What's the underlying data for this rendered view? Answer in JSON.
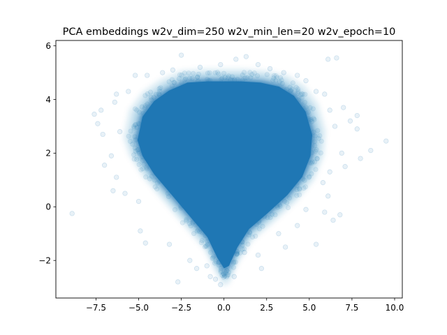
{
  "chart_data": {
    "type": "scatter",
    "title": "PCA embeddings w2v_dim=250 w2v_min_len=20 w2v_epoch=10",
    "xlabel": "",
    "ylabel": "",
    "xlim": [
      -9.85,
      10.45
    ],
    "ylim": [
      -3.4,
      6.2
    ],
    "x_ticks": [
      -7.5,
      -5.0,
      -2.5,
      0.0,
      2.5,
      5.0,
      7.5,
      10.0
    ],
    "x_tick_labels": [
      "−7.5",
      "−5.0",
      "−2.5",
      "0.0",
      "2.5",
      "5.0",
      "7.5",
      "10.0"
    ],
    "y_ticks": [
      -2,
      0,
      2,
      4,
      6
    ],
    "y_tick_labels": [
      "−2",
      "0",
      "2",
      "4",
      "6"
    ],
    "grid": false,
    "legend": "none",
    "marker_color": "#1f77b4",
    "marker_alpha": 0.08,
    "series": [
      {
        "density_region_outline": [
          [
            -5.2,
            2.5
          ],
          [
            -4.9,
            3.4
          ],
          [
            -4.2,
            4.0
          ],
          [
            -3.3,
            4.4
          ],
          [
            -2.2,
            4.7
          ],
          [
            -1.0,
            4.75
          ],
          [
            0.0,
            4.75
          ],
          [
            1.0,
            4.75
          ],
          [
            2.2,
            4.7
          ],
          [
            3.3,
            4.55
          ],
          [
            4.2,
            4.2
          ],
          [
            4.9,
            3.6
          ],
          [
            5.3,
            2.7
          ],
          [
            5.2,
            1.9
          ],
          [
            4.7,
            1.1
          ],
          [
            3.8,
            0.4
          ],
          [
            2.6,
            -0.3
          ],
          [
            1.5,
            -0.9
          ],
          [
            0.8,
            -1.6
          ],
          [
            0.3,
            -2.3
          ],
          [
            0.0,
            -2.4
          ],
          [
            -0.4,
            -2.0
          ],
          [
            -1.0,
            -1.2
          ],
          [
            -1.8,
            -0.6
          ],
          [
            -3.0,
            0.3
          ],
          [
            -4.2,
            1.2
          ],
          [
            -4.9,
            1.9
          ]
        ],
        "sample_points": [
          [
            -8.9,
            -0.25
          ],
          [
            9.5,
            2.45
          ],
          [
            8.6,
            2.1
          ],
          [
            7.1,
            1.5
          ],
          [
            6.9,
            2.0
          ],
          [
            7.0,
            3.7
          ],
          [
            7.4,
            3.2
          ],
          [
            7.8,
            3.4
          ],
          [
            8.0,
            1.8
          ],
          [
            7.8,
            2.9
          ],
          [
            6.6,
            5.55
          ],
          [
            6.1,
            5.5
          ],
          [
            6.1,
            0.4
          ],
          [
            6.8,
            -0.3
          ],
          [
            6.4,
            -0.5
          ],
          [
            5.9,
            -0.2
          ],
          [
            6.2,
            1.3
          ],
          [
            5.4,
            -1.4
          ],
          [
            3.6,
            -1.5
          ],
          [
            2.2,
            -2.3
          ],
          [
            2.0,
            -1.8
          ],
          [
            1.2,
            -1.7
          ],
          [
            -0.2,
            -2.9
          ],
          [
            -0.5,
            -2.7
          ],
          [
            -0.8,
            -2.6
          ],
          [
            -1.0,
            -2.2
          ],
          [
            -1.6,
            -2.3
          ],
          [
            -2.0,
            -2.0
          ],
          [
            -2.7,
            -2.8
          ],
          [
            -3.2,
            -1.4
          ],
          [
            -4.6,
            -1.35
          ],
          [
            -4.9,
            -0.9
          ],
          [
            -5.0,
            0.2
          ],
          [
            -5.8,
            0.5
          ],
          [
            -6.5,
            0.6
          ],
          [
            -6.3,
            1.1
          ],
          [
            -7.0,
            1.55
          ],
          [
            -6.6,
            1.9
          ],
          [
            -6.1,
            2.8
          ],
          [
            -7.1,
            2.7
          ],
          [
            -7.4,
            3.1
          ],
          [
            -7.6,
            3.45
          ],
          [
            -7.2,
            3.6
          ],
          [
            -6.4,
            3.9
          ],
          [
            -6.3,
            4.2
          ],
          [
            -5.6,
            4.3
          ],
          [
            -5.2,
            4.9
          ],
          [
            -4.5,
            4.9
          ],
          [
            -3.6,
            5.0
          ],
          [
            -3.0,
            5.1
          ],
          [
            -2.5,
            5.65
          ],
          [
            -1.4,
            5.2
          ],
          [
            -0.2,
            5.3
          ],
          [
            0.7,
            5.5
          ],
          [
            1.3,
            5.6
          ],
          [
            2.0,
            5.3
          ],
          [
            2.7,
            5.15
          ],
          [
            3.5,
            5.0
          ],
          [
            4.3,
            4.9
          ],
          [
            4.8,
            4.7
          ],
          [
            5.4,
            4.3
          ],
          [
            5.9,
            4.2
          ],
          [
            6.2,
            3.6
          ],
          [
            6.5,
            3.0
          ],
          [
            5.8,
            0.9
          ],
          [
            4.8,
            -0.1
          ],
          [
            4.3,
            -0.7
          ],
          [
            3.2,
            -1.0
          ],
          [
            0.6,
            -2.6
          ],
          [
            -0.1,
            -2.55
          ]
        ]
      }
    ]
  }
}
